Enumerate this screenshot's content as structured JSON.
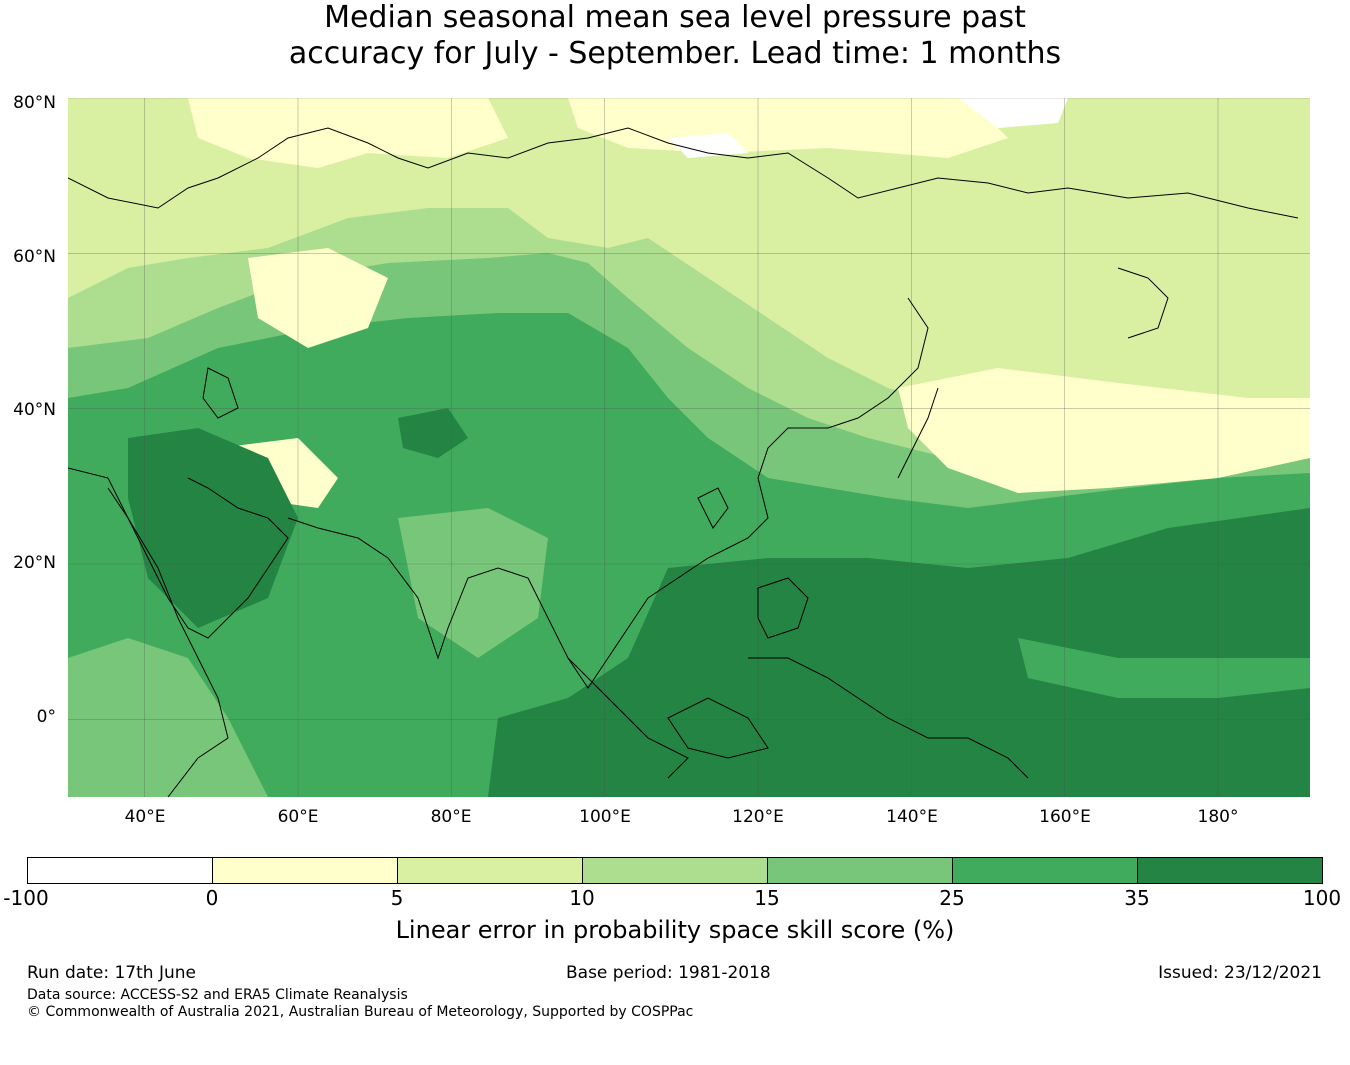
{
  "title": {
    "line1": "Median seasonal mean sea level pressure past",
    "line2": "accuracy for July - September. Lead time: 1 months"
  },
  "map": {
    "lat_labels": [
      "80°N",
      "60°N",
      "40°N",
      "20°N",
      "0°"
    ],
    "lon_labels": [
      "40°E",
      "60°E",
      "80°E",
      "100°E",
      "120°E",
      "140°E",
      "160°E",
      "180°"
    ],
    "extent": {
      "lon_min": 30,
      "lon_max": 192,
      "lat_min": -10,
      "lat_max": 80
    },
    "gridlines": true,
    "coastlines": true
  },
  "colorbar": {
    "ticks": [
      "-100",
      "0",
      "5",
      "10",
      "15",
      "25",
      "35",
      "100"
    ],
    "colors": [
      "#ffffff",
      "#ffffcc",
      "#d9f0a3",
      "#addd8e",
      "#78c679",
      "#41ab5d",
      "#238443"
    ],
    "label": "Linear error in probability space skill score (%)"
  },
  "footer": {
    "run_date": "Run date: 17th June",
    "base_period": "Base period: 1981-2018",
    "issued": "Issued: 23/12/2021",
    "data_source": "Data source: ACCESS-S2 and ERA5 Climate Reanalysis",
    "copyright": "© Commonwealth of Australia 2021, Australian Bureau of Meteorology, Supported by COSPPac"
  }
}
